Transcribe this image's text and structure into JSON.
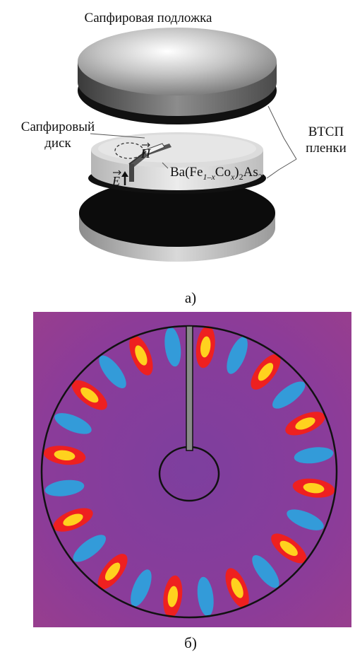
{
  "panel_a": {
    "label_substrate": "Сапфировая подложка",
    "label_disk_line1": "Сапфировый",
    "label_disk_line2": "диск",
    "label_films_line1": "ВТСП",
    "label_films_line2": "пленки",
    "vector_h": "H",
    "vector_e": "E",
    "compound": {
      "base": "Ba(Fe",
      "sub1": "1–x",
      "mid": "Co",
      "sub2": "x",
      "close": ")",
      "sub3": "2",
      "tail": "As",
      "sub4": "2"
    },
    "caption": "а)"
  },
  "panel_b": {
    "caption": "б)",
    "lobe_count": 24,
    "colors": {
      "background": "#8a3c9a",
      "red": "#ee2020",
      "yellow": "#ffd21e",
      "blue": "#2ea0dc",
      "outline": "#111111"
    }
  }
}
